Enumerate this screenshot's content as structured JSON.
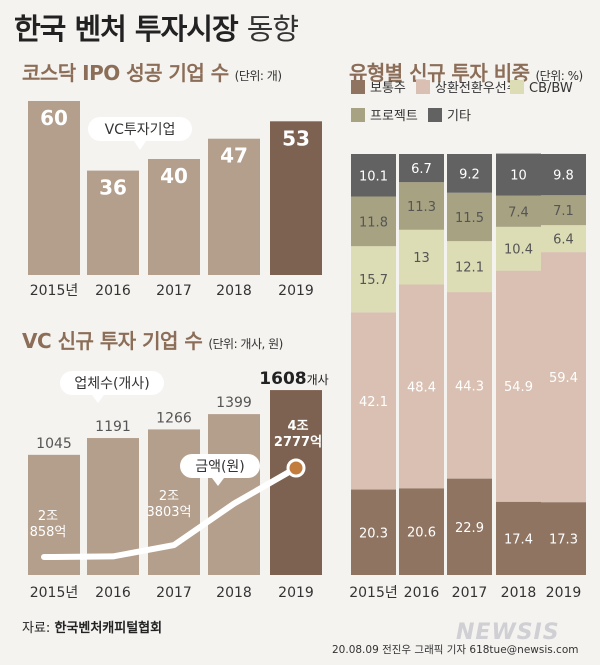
{
  "header": {
    "title_bold": "한국 벤처 투자시장",
    "title_light": "동향"
  },
  "source": {
    "label": "자료:",
    "name": "한국벤처캐피털협회"
  },
  "credit": "20.08.09 전진우 그래픽 기자 618tue@newsis.com",
  "logo": "NEWSIS",
  "chart_data": [
    {
      "type": "bar",
      "title": "코스닥 IPO 성공 기업 수",
      "unit": "(단위: 개)",
      "categories": [
        "2015년",
        "2016",
        "2017",
        "2018",
        "2019"
      ],
      "values": [
        60,
        36,
        40,
        47,
        53
      ],
      "callout": "VC투자기업",
      "colors": {
        "bar": "#b49f8c",
        "highlight": "#7d6251"
      }
    },
    {
      "type": "bar",
      "title": "VC 신규 투자 기업 수",
      "unit": "(단위: 개사, 원)",
      "categories": [
        "2015년",
        "2016",
        "2017",
        "2018",
        "2019"
      ],
      "values": [
        1045,
        1191,
        1266,
        1399,
        1608
      ],
      "value_labels": [
        "1045",
        "1191",
        "1266",
        "1399",
        "1608"
      ],
      "highlight_suffix": "개사",
      "callout_count": "업체수(개사)",
      "callout_amount": "금액(원)",
      "amount_series": {
        "name": "금액(원)",
        "values": [
          20858,
          21000,
          23803,
          34000,
          42777
        ],
        "labels": [
          [
            "2조",
            "858억"
          ],
          null,
          [
            "2조",
            "3803억"
          ],
          null,
          [
            "4조",
            "2777억"
          ]
        ]
      },
      "colors": {
        "bar": "#b49f8c",
        "highlight": "#7d6251",
        "line": "#ffffff",
        "marker": "#c17c3e"
      }
    },
    {
      "type": "bar",
      "stacked": true,
      "title": "유형별 신규 투자 비중",
      "unit": "(단위: %)",
      "categories": [
        "2015년",
        "2016",
        "2017",
        "2018",
        "2019"
      ],
      "series": [
        {
          "name": "보통주",
          "values": [
            20.3,
            20.6,
            22.9,
            17.4,
            17.3
          ],
          "color": "#8f7461"
        },
        {
          "name": "상환전환우선주",
          "values": [
            42.1,
            48.4,
            44.3,
            54.9,
            59.4
          ],
          "color": "#d9c0b2"
        },
        {
          "name": "CB/BW",
          "values": [
            15.7,
            13,
            12.1,
            10.4,
            6.4
          ],
          "color": "#dcdcb5"
        },
        {
          "name": "프로젝트",
          "values": [
            11.8,
            11.3,
            11.5,
            7.4,
            7.1
          ],
          "color": "#a7a382"
        },
        {
          "name": "기타",
          "values": [
            10.1,
            6.7,
            9.2,
            10,
            9.8
          ],
          "color": "#626262"
        }
      ]
    }
  ]
}
